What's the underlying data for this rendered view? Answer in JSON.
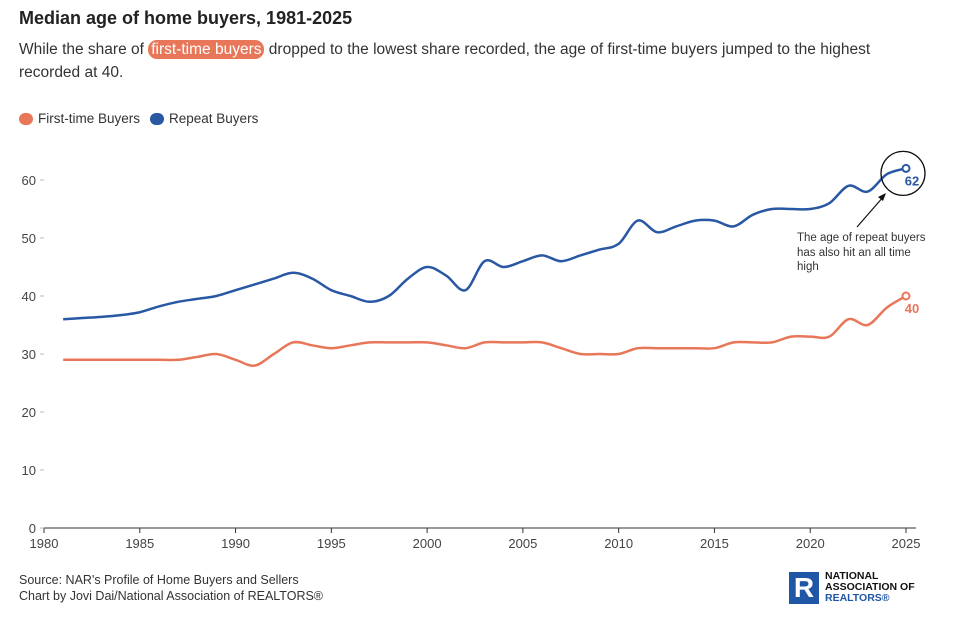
{
  "title": "Median age of home buyers, 1981-2025",
  "subtitle": {
    "pre": "While the share of ",
    "highlight": "first-time buyers",
    "post": " dropped to the lowest share recorded, the age of first-time buyers jumped to the highest recorded at 40."
  },
  "source": "Source: NAR's Profile of Home Buyers and Sellers",
  "credit": "Chart by Jovi Dai/National Association of REALTORS®",
  "logo": {
    "line1": "NATIONAL",
    "line2": "ASSOCIATION OF",
    "line3": "REALTORS®",
    "mark": "R"
  },
  "chart_data": {
    "type": "line",
    "title": "Median age of home buyers, 1981-2025",
    "xlabel": "",
    "ylabel": "",
    "xlim": [
      1980,
      2025
    ],
    "ylim": [
      0,
      65
    ],
    "xticks": [
      1980,
      1985,
      1990,
      1995,
      2000,
      2005,
      2010,
      2015,
      2020,
      2025
    ],
    "yticks": [
      0,
      10,
      20,
      30,
      40,
      50,
      60
    ],
    "grid": false,
    "legend": "top-left",
    "x": [
      1981,
      1982,
      1983,
      1984,
      1985,
      1986,
      1987,
      1988,
      1989,
      1990,
      1991,
      1992,
      1993,
      1994,
      1995,
      1996,
      1997,
      1998,
      1999,
      2000,
      2001,
      2002,
      2003,
      2004,
      2005,
      2006,
      2007,
      2008,
      2009,
      2010,
      2011,
      2012,
      2013,
      2014,
      2015,
      2016,
      2017,
      2018,
      2019,
      2020,
      2021,
      2022,
      2023,
      2024,
      2025
    ],
    "series": [
      {
        "name": "First-time Buyers",
        "color": "#e8775a",
        "end_label": "40",
        "values": [
          29,
          29,
          29,
          29,
          29,
          29,
          29,
          29.5,
          30,
          29,
          28,
          30,
          32,
          31.5,
          31,
          31.5,
          32,
          32,
          32,
          32,
          31.5,
          31,
          32,
          32,
          32,
          32,
          31,
          30,
          30,
          30,
          31,
          31,
          31,
          31,
          31,
          32,
          32,
          32,
          33,
          33,
          33,
          36,
          35,
          38,
          40
        ]
      },
      {
        "name": "Repeat Buyers",
        "color": "#2857a4",
        "end_label": "62",
        "values": [
          36,
          36.2,
          36.4,
          36.7,
          37.2,
          38.2,
          39,
          39.5,
          40,
          41,
          42,
          43,
          44,
          43,
          41,
          40,
          39,
          40,
          43,
          45,
          43.5,
          41,
          46,
          45,
          46,
          47,
          46,
          47,
          48,
          49,
          53,
          51,
          52,
          53,
          53,
          52,
          54,
          55,
          55,
          55,
          56,
          59,
          58,
          61,
          62
        ]
      }
    ],
    "annotation": "The age of repeat buyers has also hit an all time high"
  }
}
